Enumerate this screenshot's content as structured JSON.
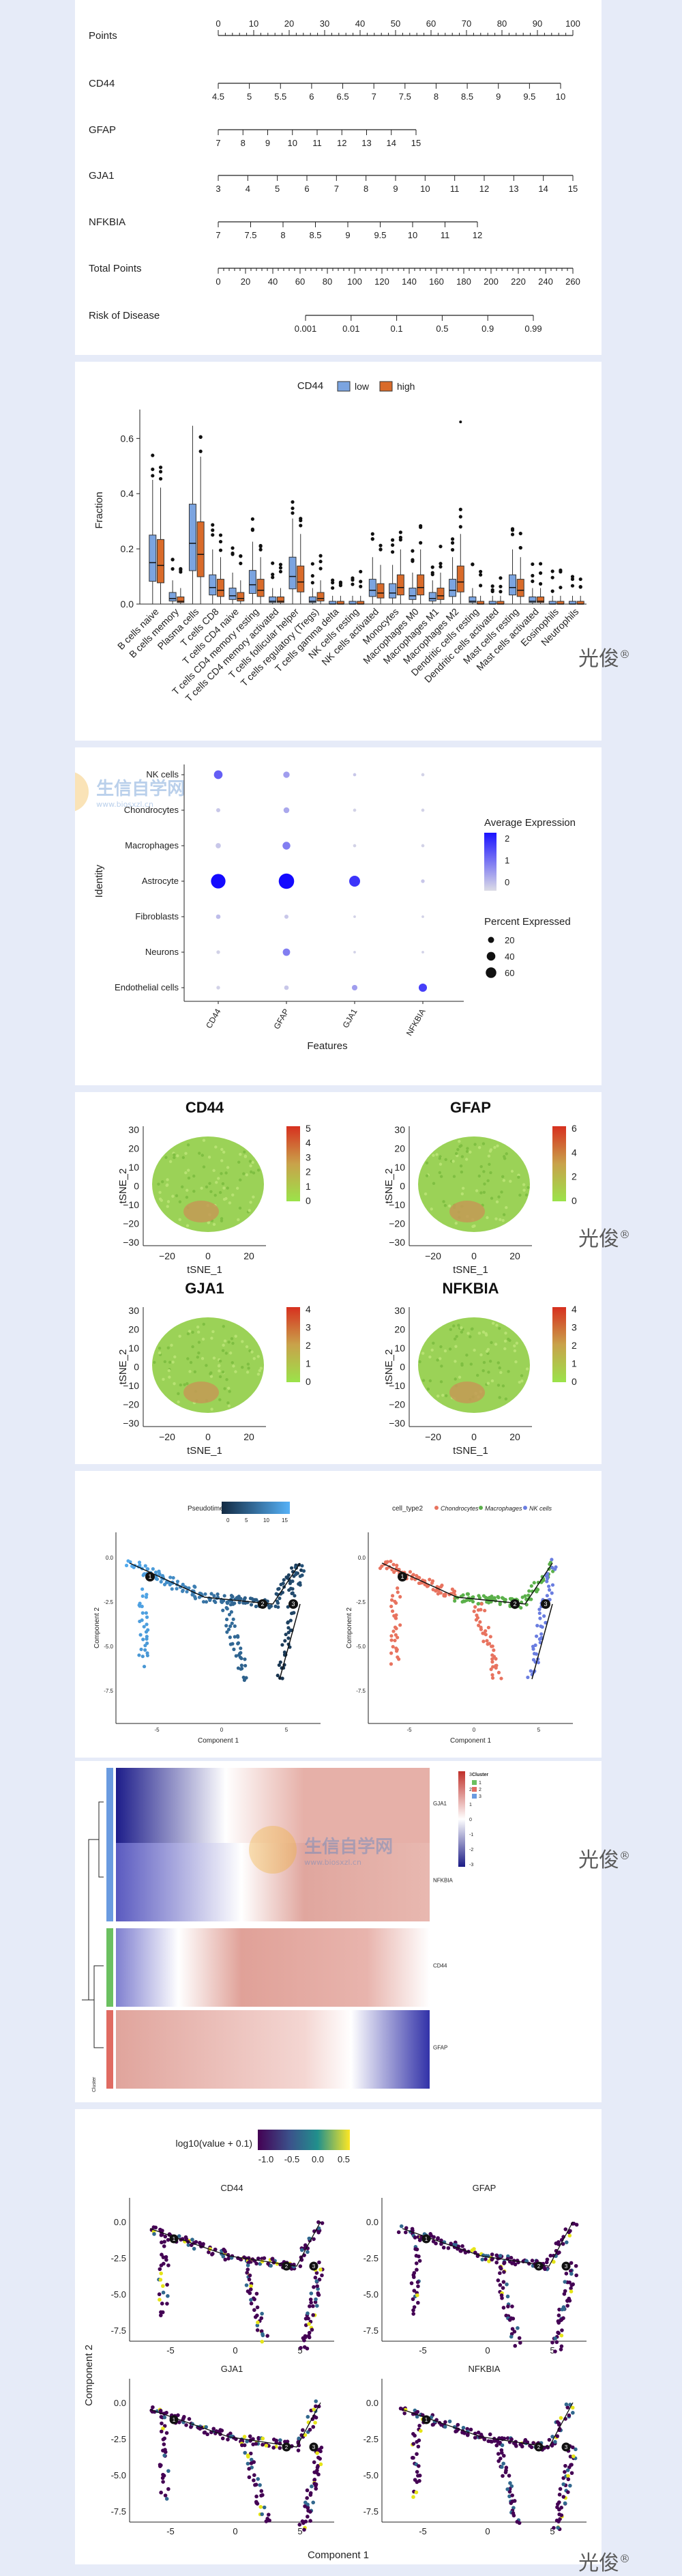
{
  "watermark": {
    "text": "光俊",
    "reg": "®"
  },
  "logo": {
    "cn": "生信自学网",
    "url": "www.biosxzl.cn"
  },
  "nomogram": {
    "rows": [
      {
        "label": "Points",
        "ticks": [
          "0",
          "10",
          "20",
          "30",
          "40",
          "50",
          "60",
          "70",
          "80",
          "90",
          "100"
        ]
      },
      {
        "label": "CD44",
        "ticks": [
          "4.5",
          "5",
          "5.5",
          "6",
          "6.5",
          "7",
          "7.5",
          "8",
          "8.5",
          "9",
          "9.5",
          "10"
        ]
      },
      {
        "label": "GFAP",
        "ticks": [
          "7",
          "8",
          "9",
          "10",
          "11",
          "12",
          "13",
          "14",
          "15"
        ]
      },
      {
        "label": "GJA1",
        "ticks": [
          "3",
          "4",
          "5",
          "6",
          "7",
          "8",
          "9",
          "10",
          "11",
          "12",
          "13",
          "14",
          "15"
        ]
      },
      {
        "label": "NFKBIA",
        "ticks": [
          "7",
          "7.5",
          "8",
          "8.5",
          "9",
          "9.5",
          "10",
          "11",
          "12"
        ]
      },
      {
        "label": "Total Points",
        "ticks": [
          "0",
          "20",
          "40",
          "60",
          "80",
          "100",
          "120",
          "140",
          "160",
          "180",
          "200",
          "220",
          "240",
          "260"
        ]
      },
      {
        "label": "Risk of Disease",
        "ticks": [
          "0.001",
          "0.01",
          "0.1",
          "0.5",
          "0.9",
          "0.99"
        ]
      }
    ]
  },
  "chart_data": [
    {
      "type": "boxplot",
      "title": "CD44",
      "legend": [
        "low",
        "high"
      ],
      "colors": {
        "low": "#7ba4e0",
        "high": "#d96b2a"
      },
      "ylabel": "Fraction",
      "ylim": [
        0,
        0.68
      ],
      "yticks": [
        "0.0",
        "0.2",
        "0.4",
        "0.6"
      ],
      "categories": [
        "B cells naive",
        "B cells memory",
        "Plasma cells",
        "T cells CD8",
        "T cells CD4 naive",
        "T cells CD4 memory resting",
        "T cells CD4 memory activated",
        "T cells follicular helper",
        "T cells regulatory (Tregs)",
        "T cells gamma delta",
        "NK cells resting",
        "NK cells activated",
        "Monocytes",
        "Macrophages M0",
        "Macrophages M1",
        "Macrophages M2",
        "Dendritic cells resting",
        "Dendritic cells activated",
        "Mast cells resting",
        "Mast cells activated",
        "Eosinophils",
        "Neutrophils"
      ],
      "low_median": [
        0.15,
        0.02,
        0.22,
        0.06,
        0.03,
        0.07,
        0.01,
        0.1,
        0.01,
        0.0,
        0.0,
        0.05,
        0.04,
        0.03,
        0.02,
        0.05,
        0.01,
        0.0,
        0.06,
        0.01,
        0.0,
        0.0
      ],
      "high_median": [
        0.14,
        0.01,
        0.18,
        0.05,
        0.02,
        0.05,
        0.01,
        0.08,
        0.02,
        0.0,
        0.0,
        0.04,
        0.06,
        0.06,
        0.03,
        0.08,
        0.0,
        0.0,
        0.05,
        0.01,
        0.0,
        0.0
      ]
    },
    {
      "type": "dotplot",
      "ylabel": "Identity",
      "xlabel": "Features",
      "rows": [
        "NK cells",
        "Chondrocytes",
        "Macrophages",
        "Astrocyte",
        "Fibroblasts",
        "Neurons",
        "Endothelial cells"
      ],
      "features": [
        "CD44",
        "GFAP",
        "GJA1",
        "NFKBIA"
      ],
      "avg_expression": [
        [
          1.2,
          0.6,
          0.2,
          0.1
        ],
        [
          0.2,
          0.5,
          0.1,
          0.1
        ],
        [
          0.2,
          0.9,
          0.1,
          0.1
        ],
        [
          2.0,
          2.0,
          1.6,
          0.2
        ],
        [
          0.3,
          0.2,
          0.1,
          0.1
        ],
        [
          0.1,
          0.9,
          0.1,
          0.1
        ],
        [
          0.1,
          0.2,
          0.6,
          1.5
        ]
      ],
      "pct_expressed": [
        [
          22,
          12,
          3,
          3
        ],
        [
          5,
          10,
          3,
          3
        ],
        [
          8,
          18,
          3,
          3
        ],
        [
          62,
          70,
          35,
          4
        ],
        [
          6,
          5,
          2,
          2
        ],
        [
          4,
          16,
          2,
          2
        ],
        [
          4,
          6,
          9,
          20
        ]
      ],
      "legend_avg_title": "Average Expression",
      "legend_avg_ticks": [
        "2",
        "1",
        "0"
      ],
      "legend_pct_title": "Percent Expressed",
      "legend_pct_ticks": [
        "20",
        "40",
        "60"
      ]
    },
    {
      "type": "tsne-featureplot",
      "xlabel": "tSNE_1",
      "ylabel": "tSNE_2",
      "xticks": [
        "−20",
        "0",
        "20"
      ],
      "yticks": [
        "30",
        "20",
        "10",
        "0",
        "−10",
        "−20",
        "−30"
      ],
      "panels": [
        {
          "title": "CD44",
          "scale": [
            "5",
            "4",
            "3",
            "2",
            "1",
            "0"
          ]
        },
        {
          "title": "GFAP",
          "scale": [
            "6",
            "4",
            "2",
            "0"
          ]
        },
        {
          "title": "GJA1",
          "scale": [
            "4",
            "3",
            "2",
            "1",
            "0"
          ]
        },
        {
          "title": "NFKBIA",
          "scale": [
            "4",
            "3",
            "2",
            "1",
            "0"
          ]
        }
      ]
    },
    {
      "type": "trajectory",
      "xlabel": "Component 1",
      "ylabel": "Component 2",
      "left_legend_title": "Pseudotime",
      "left_legend_ticks": [
        "0",
        "5",
        "10",
        "15"
      ],
      "right_legend_title": "cell_type2",
      "right_legend_items": [
        "Chondrocytes",
        "Macrophages",
        "NK cells"
      ],
      "xticks": [
        "-5",
        "0",
        "5"
      ],
      "yticks": [
        "0.0",
        "-2.5",
        "-5.0",
        "-7.5"
      ],
      "branch_labels": [
        "1",
        "2",
        "3"
      ]
    },
    {
      "type": "heatmap",
      "genes": [
        "GJA1",
        "NFKBIA",
        "CD44",
        "GFAP"
      ],
      "clusters": [
        "1",
        "2",
        "3"
      ],
      "legend_title": "Cluster",
      "scale_ticks": [
        "3",
        "2",
        "1",
        "0",
        "-1",
        "-2",
        "-3"
      ],
      "colpanel_label": "Cluster"
    },
    {
      "type": "trajectory-expression",
      "legend_title": "log10(value + 0.1)",
      "legend_ticks": [
        "-1.0",
        "-0.5",
        "0.0",
        "0.5"
      ],
      "xlabel": "Component 1",
      "ylabel": "Component 2",
      "panels": [
        "CD44",
        "GFAP",
        "GJA1",
        "NFKBIA"
      ],
      "xticks": [
        "-5",
        "0",
        "5"
      ],
      "yticks": [
        "0.0",
        "-2.5",
        "-5.0",
        "-7.5"
      ]
    }
  ]
}
